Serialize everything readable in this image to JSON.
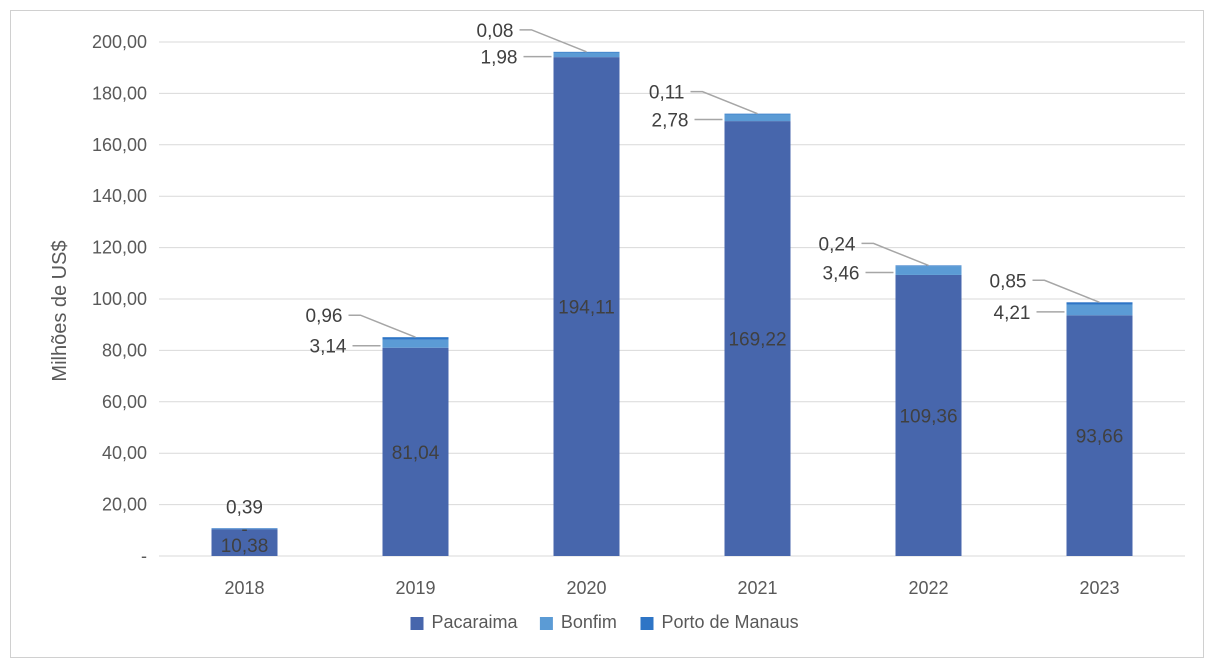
{
  "chart_data": {
    "type": "bar",
    "stacked": true,
    "ylabel": "Milhões de US$",
    "ylim": [
      0,
      200
    ],
    "yticks": [
      "-",
      "20,00",
      "40,00",
      "60,00",
      "80,00",
      "100,00",
      "120,00",
      "140,00",
      "160,00",
      "180,00",
      "200,00"
    ],
    "categories": [
      "2018",
      "2019",
      "2020",
      "2021",
      "2022",
      "2023"
    ],
    "grid": true,
    "legend_position": "bottom",
    "series": [
      {
        "name": "Pacaraima",
        "color": "#4766AC",
        "values": [
          10.38,
          81.04,
          194.11,
          169.22,
          109.36,
          93.66
        ],
        "labels": [
          "10,38",
          "81,04",
          "194,11",
          "169,22",
          "109,36",
          "93,66"
        ]
      },
      {
        "name": "Bonfim",
        "color": "#5B9BD5",
        "values": [
          0,
          3.14,
          1.98,
          2.78,
          3.46,
          4.21
        ],
        "labels": [
          "-",
          "3,14",
          "1,98",
          "2,78",
          "3,46",
          "4,21"
        ]
      },
      {
        "name": "Porto de Manaus",
        "color": "#2E75C6",
        "values": [
          0.39,
          0.96,
          0.08,
          0.11,
          0.24,
          0.85
        ],
        "labels": [
          "0,39",
          "0,96",
          "0,08",
          "0,11",
          "0,24",
          "0,85"
        ]
      }
    ]
  }
}
